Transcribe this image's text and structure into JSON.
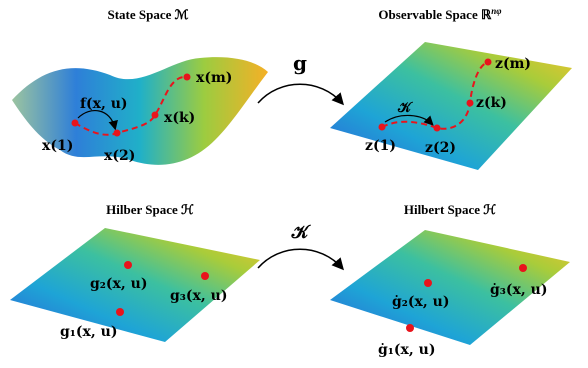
{
  "panels": [
    {
      "title": "State Space ℳ",
      "labels": [
        "f(x, u)",
        "x(1)",
        "x(2)",
        "x(k)",
        "x(m)"
      ]
    },
    {
      "title": "Observable Space ℝ",
      "title_sup": "nφ",
      "labels": [
        "𝒦",
        "z(1)",
        "z(2)",
        "z(k)",
        "z(m)"
      ]
    },
    {
      "title": "Hilber Space ℋ",
      "labels": [
        "g₂(x, u)",
        "g₃(x, u)",
        "g₁(x, u)"
      ]
    },
    {
      "title": "Hilbert Space ℋ",
      "labels": [
        "ġ₂(x, u)",
        "ġ₃(x, u)",
        "ġ₁(x, u)"
      ]
    }
  ],
  "arrows": [
    {
      "label": "g"
    },
    {
      "label": "𝒦"
    }
  ]
}
